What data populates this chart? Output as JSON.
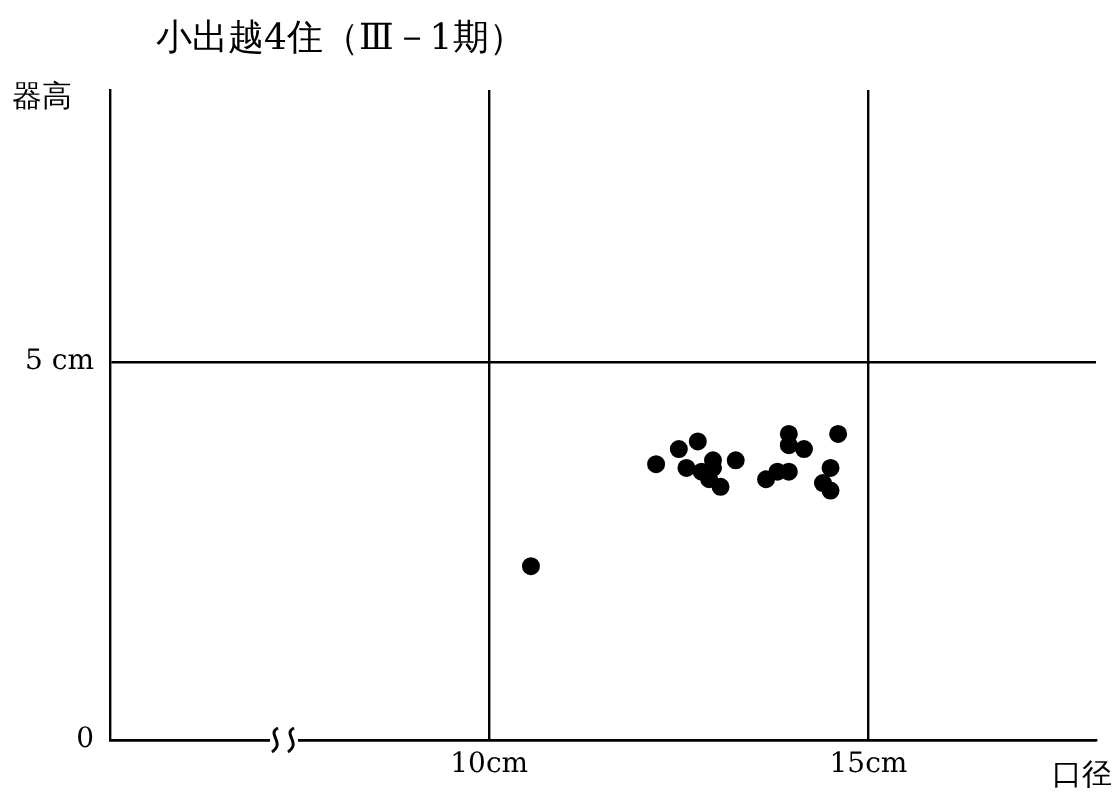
{
  "chart_data": {
    "type": "scatter",
    "title": "小出越4住（Ⅲ－1期）",
    "xlabel": "口径",
    "ylabel": "器高",
    "x": [
      12.2,
      12.5,
      12.75,
      12.6,
      12.8,
      12.95,
      12.95,
      12.9,
      13.05,
      13.25,
      13.65,
      13.8,
      13.95,
      13.95,
      13.95,
      14.15,
      14.6,
      14.5,
      14.4,
      14.5,
      10.55
    ],
    "values": [
      3.65,
      3.85,
      3.95,
      3.6,
      3.55,
      3.7,
      3.6,
      3.45,
      3.35,
      3.7,
      3.45,
      3.55,
      3.55,
      4.05,
      3.9,
      3.85,
      4.05,
      3.6,
      3.4,
      3.3,
      2.3
    ],
    "color": "#000000",
    "marker": "circle",
    "xlim": [
      5,
      18
    ],
    "ylim": [
      0,
      8.6
    ],
    "xticks": [
      {
        "value": 10,
        "label": "10cm"
      },
      {
        "value": 15,
        "label": "15cm"
      }
    ],
    "yticks": [
      0,
      {
        "value": 5,
        "label": "5 cm"
      }
    ],
    "grid": true
  }
}
